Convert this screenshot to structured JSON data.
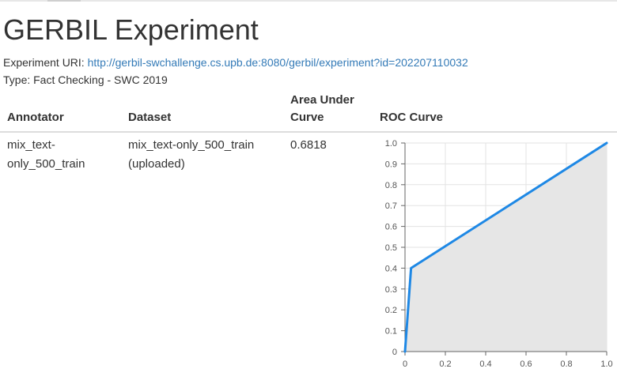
{
  "header": {
    "title": "GERBIL Experiment"
  },
  "meta": {
    "uri_label": "Experiment URI:",
    "uri_link": "http://gerbil-swchallenge.cs.upb.de:8080/gerbil/experiment?id=202207110032",
    "type_text": "Type: Fact Checking - SWC 2019"
  },
  "table": {
    "columns": {
      "annotator": "Annotator",
      "dataset": "Dataset",
      "auc_line1": "Area Under",
      "auc_line2": "Curve",
      "roc": "ROC Curve"
    },
    "rows": [
      {
        "annotator_line1": "mix_text-",
        "annotator_line2": "only_500_train",
        "dataset_line1": "mix_text-only_500_train",
        "dataset_line2": "(uploaded)",
        "auc": "0.6818"
      }
    ]
  },
  "colors": {
    "line": "#1e88e5",
    "fill": "#e6e6e6",
    "grid": "#e3e3e3",
    "link": "#337ab7"
  },
  "chart_data": {
    "type": "area",
    "x": [
      0,
      0.03,
      1.0
    ],
    "y": [
      0,
      0.4,
      1.0
    ],
    "xlim": [
      0,
      1.0
    ],
    "ylim": [
      0,
      1.0
    ],
    "x_ticks": [
      "0",
      "0.2",
      "0.4",
      "0.6",
      "0.8",
      "1.0"
    ],
    "y_ticks": [
      "0",
      "0.1",
      "0.2",
      "0.3",
      "0.4",
      "0.5",
      "0.6",
      "0.7",
      "0.8",
      "0.9",
      "1.0"
    ],
    "grid": true,
    "title": "",
    "xlabel": "",
    "ylabel": ""
  }
}
